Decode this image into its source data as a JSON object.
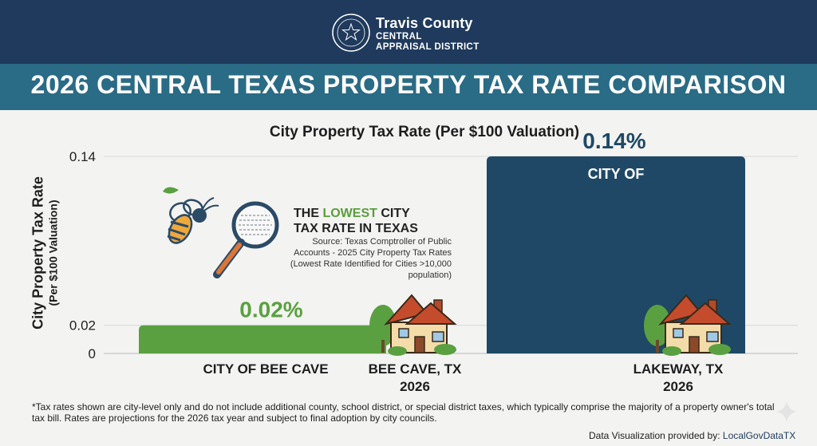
{
  "header": {
    "org_name": "Travis County",
    "org_line2": "CENTRAL",
    "org_line3": "APPRAISAL DISTRICT",
    "main_title": "2026 CENTRAL TEXAS PROPERTY TAX RATE COMPARISON"
  },
  "chart_data": {
    "type": "bar",
    "title": "City Property Tax Rate (Per $100 Valuation)",
    "ylabel_line1": "City Property Tax Rate",
    "ylabel_line2": "(Per $100 Valuation)",
    "ylim": [
      0,
      0.14
    ],
    "yticks": [
      0,
      0.02,
      0.14
    ],
    "ytick_labels": [
      "0",
      "0.02",
      "0.14"
    ],
    "grid": true,
    "categories": [
      "CITY OF BEE CAVE",
      "CITY OF"
    ],
    "values": [
      0.02,
      0.14
    ],
    "data_labels": [
      "0.02%",
      "0.14%"
    ],
    "colors": [
      "#5aa041",
      "#1f4866"
    ],
    "sublabels": [
      {
        "line1": "BEE CAVE, TX",
        "line2": "2026"
      },
      {
        "line1": "LAKEWAY, TX",
        "line2": "2026"
      }
    ]
  },
  "callout": {
    "title_before": "THE ",
    "title_highlight": "LOWEST",
    "title_after": " CITY",
    "title_line2": "TAX RATE IN TEXAS",
    "source": "Source: Texas Comptroller of Public Accounts - 2025 City Property Tax Rates (Lowest Rate Identified for Cities >10,000 population)"
  },
  "icons": [
    "seal-icon",
    "bee-icon",
    "magnifier-icon",
    "house-icon",
    "tree-icon",
    "sparkle-icon"
  ],
  "footnote": "*Tax rates shown are city-level only and do not include additional county, school district, or special district taxes, which typically comprise the majority of a property owner's total tax bill. Rates are projections for the 2026 tax year and subject to final adoption by city councils.",
  "credit": {
    "label": "Data Visualization provided by: ",
    "source": "LocalGovDataTX"
  }
}
